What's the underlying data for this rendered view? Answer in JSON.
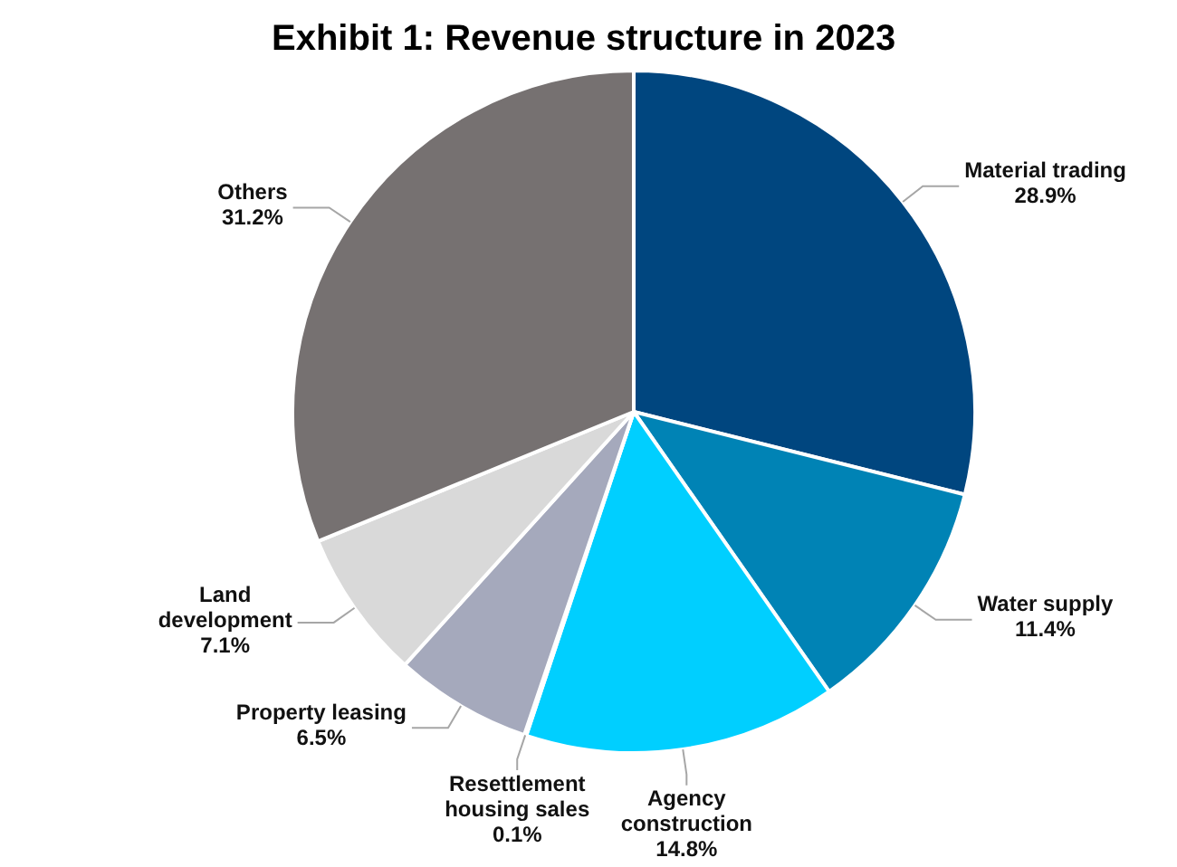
{
  "chart_data": {
    "type": "pie",
    "title": "Exhibit 1: Revenue structure in 2023",
    "categories": [
      "Material trading",
      "Water supply",
      "Agency construction",
      "Resettlement housing sales",
      "Property leasing",
      "Land development",
      "Others"
    ],
    "values": [
      28.9,
      11.4,
      14.8,
      0.1,
      6.5,
      7.1,
      31.2
    ],
    "colors": [
      "#00467f",
      "#0083b5",
      "#00cfff",
      "#ffffff",
      "#a5a9bc",
      "#d9d9d9",
      "#767171"
    ],
    "value_labels": [
      "28.9%",
      "11.4%",
      "14.8%",
      "0.1%",
      "6.5%",
      "7.1%",
      "31.2%"
    ],
    "legend": false
  }
}
